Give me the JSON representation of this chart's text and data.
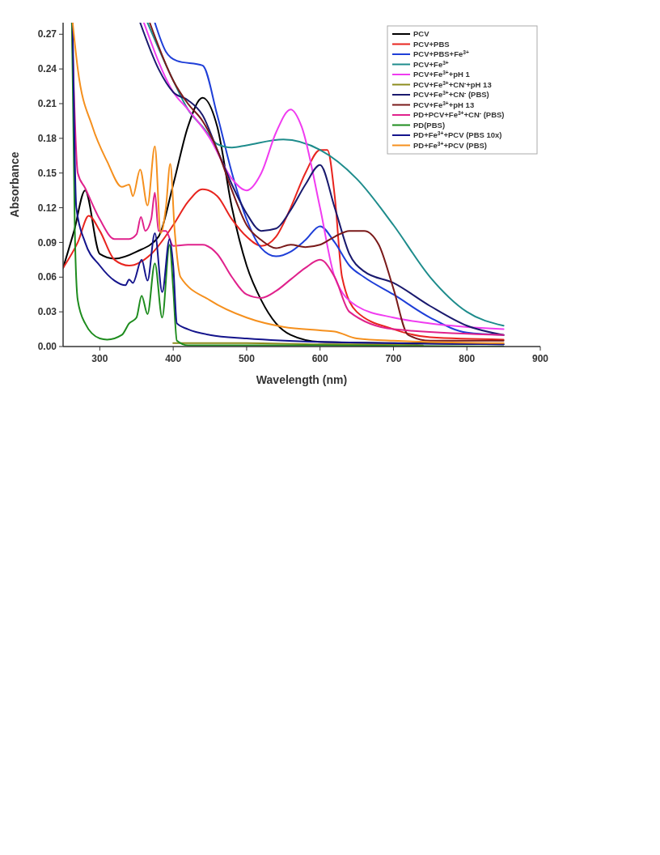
{
  "chart_data": {
    "type": "line",
    "xlabel": "Wavelength (nm)",
    "ylabel": "Absorbance",
    "xlim": [
      250,
      900
    ],
    "ylim": [
      0,
      0.28
    ],
    "xticks": [
      300,
      400,
      500,
      600,
      700,
      800,
      900
    ],
    "yticks": [
      {
        "value": 0,
        "label": "0.00"
      },
      {
        "value": 0.03,
        "label": "0.03"
      },
      {
        "value": 0.06,
        "label": "0.06"
      },
      {
        "value": 0.09,
        "label": "0.09"
      },
      {
        "value": 0.12,
        "label": "0.12"
      },
      {
        "value": 0.15,
        "label": "0.15"
      },
      {
        "value": 0.18,
        "label": "0.18"
      },
      {
        "value": 0.21,
        "label": "0.21"
      },
      {
        "value": 0.24,
        "label": "0.24"
      },
      {
        "value": 0.27,
        "label": "0.27"
      }
    ],
    "grid": false,
    "legend": "top right",
    "marker": "none",
    "line_style": "solid",
    "series": [
      {
        "name": "PCV",
        "color": "#000000",
        "x": [
          250,
          265,
          280,
          300,
          320,
          350,
          380,
          400,
          420,
          440,
          460,
          480,
          500,
          520,
          540,
          560,
          600,
          700,
          850
        ],
        "values": [
          0.068,
          0.1,
          0.135,
          0.08,
          0.076,
          0.082,
          0.095,
          0.14,
          0.19,
          0.215,
          0.19,
          0.12,
          0.07,
          0.04,
          0.02,
          0.01,
          0.004,
          0.003,
          0.002
        ]
      },
      {
        "name": "PCV+PBS",
        "color": "#e8251f",
        "x": [
          250,
          270,
          285,
          300,
          320,
          340,
          370,
          400,
          420,
          440,
          460,
          480,
          500,
          520,
          540,
          560,
          580,
          600,
          610,
          620,
          630,
          650,
          700,
          750,
          850
        ],
        "values": [
          0.068,
          0.09,
          0.113,
          0.1,
          0.075,
          0.07,
          0.08,
          0.105,
          0.125,
          0.136,
          0.13,
          0.11,
          0.095,
          0.087,
          0.095,
          0.12,
          0.15,
          0.17,
          0.17,
          0.13,
          0.06,
          0.03,
          0.015,
          0.008,
          0.006
        ]
      },
      {
        "name": "PCV+PBS+Fe$^{3+}$",
        "color": "#1f3fd8",
        "x": [
          375,
          390,
          405,
          440,
          460,
          480,
          500,
          520,
          540,
          560,
          580,
          600,
          620,
          640,
          660,
          700,
          750,
          800,
          850
        ],
        "values": [
          0.28,
          0.255,
          0.247,
          0.243,
          0.2,
          0.15,
          0.11,
          0.085,
          0.078,
          0.082,
          0.092,
          0.104,
          0.09,
          0.07,
          0.06,
          0.045,
          0.025,
          0.012,
          0.01
        ]
      },
      {
        "name": "PCV+Fe$^{3+}$",
        "color": "#1e8c8c",
        "x": [
          365,
          400,
          420,
          440,
          460,
          480,
          500,
          550,
          600,
          650,
          700,
          750,
          800,
          850
        ],
        "values": [
          0.28,
          0.23,
          0.205,
          0.19,
          0.175,
          0.172,
          0.174,
          0.179,
          0.17,
          0.145,
          0.105,
          0.06,
          0.03,
          0.018
        ]
      },
      {
        "name": "PCV+Fe$^{3+}$+pH 1",
        "color": "#f03cf0",
        "x": [
          360,
          400,
          420,
          450,
          480,
          500,
          520,
          540,
          560,
          575,
          600,
          620,
          650,
          700,
          750,
          850
        ],
        "values": [
          0.28,
          0.22,
          0.205,
          0.18,
          0.145,
          0.135,
          0.15,
          0.185,
          0.205,
          0.19,
          0.12,
          0.06,
          0.035,
          0.025,
          0.02,
          0.015
        ]
      },
      {
        "name": "PCV+Fe$^{3+}$+CN$^{-}$+pH 13",
        "color": "#8c8c1e",
        "x": [
          400,
          500,
          600,
          700,
          740
        ],
        "values": [
          0.003,
          0.003,
          0.002,
          0.002,
          0.001
        ]
      },
      {
        "name": "PCV+Fe$^{3+}$+CN$^{-}$ (PBS)",
        "color": "#1a1a6e",
        "x": [
          355,
          380,
          400,
          420,
          440,
          460,
          480,
          500,
          520,
          540,
          560,
          580,
          600,
          620,
          640,
          660,
          700,
          750,
          800,
          850
        ],
        "values": [
          0.28,
          0.24,
          0.22,
          0.213,
          0.2,
          0.17,
          0.14,
          0.115,
          0.1,
          0.102,
          0.118,
          0.14,
          0.157,
          0.12,
          0.08,
          0.065,
          0.055,
          0.035,
          0.018,
          0.01
        ]
      },
      {
        "name": "PCV+Fe$^{3+}$+pH 13",
        "color": "#7a1a1a",
        "x": [
          368,
          400,
          420,
          440,
          460,
          480,
          500,
          520,
          540,
          560,
          580,
          600,
          620,
          640,
          660,
          680,
          700,
          720,
          750,
          850
        ],
        "values": [
          0.28,
          0.23,
          0.21,
          0.195,
          0.17,
          0.135,
          0.105,
          0.092,
          0.085,
          0.088,
          0.086,
          0.088,
          0.095,
          0.1,
          0.1,
          0.088,
          0.05,
          0.01,
          0.005,
          0.005
        ]
      },
      {
        "name": "PD+PCV+Fe$^{3+}$+CN$^{-}$ (PBS)",
        "color": "#e0228c",
        "x": [
          262,
          270,
          280,
          300,
          320,
          340,
          350,
          356,
          362,
          370,
          375,
          380,
          390,
          400,
          420,
          440,
          460,
          480,
          500,
          520,
          540,
          560,
          580,
          600,
          620,
          640,
          700,
          850
        ],
        "values": [
          0.28,
          0.15,
          0.137,
          0.11,
          0.093,
          0.093,
          0.097,
          0.112,
          0.1,
          0.11,
          0.133,
          0.1,
          0.1,
          0.087,
          0.088,
          0.088,
          0.08,
          0.06,
          0.045,
          0.042,
          0.048,
          0.058,
          0.068,
          0.075,
          0.06,
          0.03,
          0.015,
          0.01
        ]
      },
      {
        "name": "PD(PBS)",
        "color": "#1e8c1e",
        "x": [
          262,
          266,
          270,
          280,
          300,
          310,
          330,
          340,
          350,
          357,
          365,
          375,
          385,
          395,
          400,
          405,
          420,
          600,
          850
        ],
        "values": [
          0.28,
          0.1,
          0.04,
          0.02,
          0.007,
          0.006,
          0.01,
          0.02,
          0.025,
          0.044,
          0.028,
          0.072,
          0.025,
          0.088,
          0.05,
          0.005,
          0.001,
          0.001,
          0.0
        ]
      },
      {
        "name": "PD+Fe$^{3+}$+PCV (PBS 10x)",
        "color": "#14148c",
        "x": [
          263,
          268,
          280,
          300,
          320,
          335,
          340,
          345,
          357,
          365,
          375,
          385,
          395,
          400,
          405,
          420,
          450,
          500,
          600,
          850
        ],
        "values": [
          0.28,
          0.12,
          0.09,
          0.07,
          0.057,
          0.053,
          0.058,
          0.055,
          0.075,
          0.057,
          0.098,
          0.047,
          0.093,
          0.07,
          0.02,
          0.015,
          0.01,
          0.007,
          0.004,
          0.002
        ]
      },
      {
        "name": "PD+Fe$^{3+}$+PCV (PBS)",
        "color": "#f5901e",
        "x": [
          263,
          270,
          290,
          310,
          330,
          340,
          345,
          355,
          365,
          375,
          383,
          390,
          396,
          402,
          410,
          450,
          500,
          550,
          600,
          620,
          650,
          700,
          850
        ],
        "values": [
          0.28,
          0.24,
          0.19,
          0.16,
          0.138,
          0.14,
          0.13,
          0.153,
          0.122,
          0.173,
          0.098,
          0.12,
          0.158,
          0.1,
          0.06,
          0.04,
          0.025,
          0.017,
          0.014,
          0.013,
          0.007,
          0.005,
          0.003
        ]
      }
    ]
  }
}
